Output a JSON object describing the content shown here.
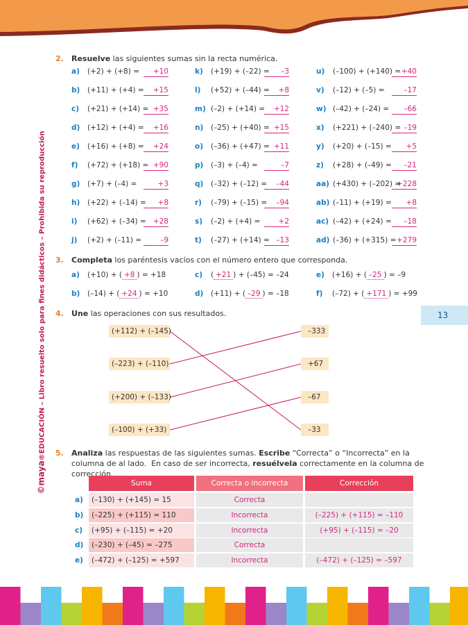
{
  "side_note": {
    "brand": "©maya",
    "text": "®EDUCACIÓN – Libro resuelto solo para fines didácticos – Prohibida su reproducción"
  },
  "page_number": "13",
  "exercise_2": {
    "number": "2.",
    "parts": [
      {
        "text": "Resuelve",
        "bold": true
      },
      {
        "text": " las siguientes sumas sin la recta numérica.",
        "bold": false
      }
    ],
    "columns": [
      [
        [
          "a)",
          "(+2) + (+8) =",
          "+10"
        ],
        [
          "b)",
          "(+11) + (+4) =",
          "+15"
        ],
        [
          "c)",
          "(+21) + (+14) =",
          "+35"
        ],
        [
          "d)",
          "(+12) + (+4) =",
          "+16"
        ],
        [
          "e)",
          "(+16) + (+8) =",
          "+24"
        ],
        [
          "f)",
          "(+72) + (+18) =",
          "+90"
        ],
        [
          "g)",
          "(+7) + (–4) =",
          "+3"
        ],
        [
          "h)",
          "(+22) + (–14) =",
          "+8"
        ],
        [
          "i)",
          "(+62) + (–34) =",
          "+28"
        ],
        [
          "j)",
          "(+2) + (–11) =",
          "–9"
        ]
      ],
      [
        [
          "k)",
          "(+19) + (–22) =",
          "–3"
        ],
        [
          "l)",
          "(+52) + (–44) =",
          "+8"
        ],
        [
          "m)",
          "(–2) + (+14) =",
          "+12"
        ],
        [
          "n)",
          "(–25) + (+40) =",
          "+15"
        ],
        [
          "o)",
          "(–36) + (+47) =",
          "+11"
        ],
        [
          "p)",
          "(–3) + (–4) =",
          "–7"
        ],
        [
          "q)",
          "(–32) + (–12) =",
          "–44"
        ],
        [
          "r)",
          "(–79) + (–15) =",
          "–94"
        ],
        [
          "s)",
          "(–2) + (+4) =",
          "+2"
        ],
        [
          "t)",
          "(–27) + (+14) =",
          "–13"
        ]
      ],
      [
        [
          "u)",
          "(–100) + (+140) =",
          "+40"
        ],
        [
          "v)",
          "(–12) + (–5) =",
          "–17"
        ],
        [
          "w)",
          "(–42) + (–24) =",
          "–66"
        ],
        [
          "x)",
          "(+221) + (–240) =",
          "–19"
        ],
        [
          "y)",
          "(+20) + (–15) =",
          "+5"
        ],
        [
          "z)",
          "(+28) + (–49) =",
          "–21"
        ],
        [
          "aa)",
          "(+430) + (–202) =",
          "+228"
        ],
        [
          "ab)",
          "(–11) + (+19) =",
          "+8"
        ],
        [
          "ac)",
          "(–42) + (+24) =",
          "–18"
        ],
        [
          "ad)",
          "(–36) + (+315) =",
          "+279"
        ]
      ]
    ]
  },
  "exercise_3": {
    "number": "3.",
    "parts": [
      {
        "text": "Completa",
        "bold": true
      },
      {
        "text": " los paréntesis vacíos con el número entero que corresponda.",
        "bold": false
      }
    ],
    "columns": [
      [
        [
          "a)",
          "(+10) + (",
          "+8",
          ") = +18"
        ],
        [
          "b)",
          "(–14) + (",
          "+24",
          ") = +10"
        ]
      ],
      [
        [
          "c)",
          "(",
          "+21",
          ") + (–45) = –24"
        ],
        [
          "d)",
          "(+11) + (",
          "–29",
          ") = –18"
        ]
      ],
      [
        [
          "e)",
          "(+16) + (",
          "–25",
          ") = –9"
        ],
        [
          "f)",
          "(–72) + (",
          "+171",
          ") = +99"
        ]
      ]
    ]
  },
  "exercise_4": {
    "number": "4.",
    "parts": [
      {
        "text": "Une",
        "bold": true
      },
      {
        "text": " las operaciones con sus resultados.",
        "bold": false
      }
    ],
    "operations": [
      "(+112) + (–145)",
      "(–223) + (–110)",
      "(+200) + (–133)",
      "(–100) + (+33)"
    ],
    "results": [
      "–333",
      "+67",
      "–67",
      "–33"
    ]
  },
  "exercise_5": {
    "number": "5.",
    "parts": [
      {
        "text": "Analiza",
        "bold": true
      },
      {
        "text": " las respuestas de las siguientes sumas. ",
        "bold": false
      },
      {
        "text": "Escribe",
        "bold": true
      },
      {
        "text": " “Correcta” o “Incorrecta” en la columna de al lado.  En caso de ser incorrecta, ",
        "bold": false
      },
      {
        "text": "resuélvela",
        "bold": true
      },
      {
        "text": " correctamente en la columna de corrección.",
        "bold": false
      }
    ],
    "table": {
      "headers": [
        "Suma",
        "Correcta o incorrecta",
        "Corrección"
      ],
      "rows": [
        [
          "a)",
          "(–130) + (+145) = 15",
          "Correcta",
          null
        ],
        [
          "b)",
          "(–225) + (+115) = 110",
          "Incorrecta",
          "(–225) + (+115) = –110"
        ],
        [
          "c)",
          "(+95) + (–115) = +20",
          "Incorrecta",
          "(+95) + (–115) = –20"
        ],
        [
          "d)",
          "(–230) + (–45) = –275",
          "Correcta",
          null
        ],
        [
          "e)",
          "(–472) + (–125) = +597",
          "Incorrecta",
          "(–472) + (–125) = –597"
        ]
      ]
    }
  }
}
